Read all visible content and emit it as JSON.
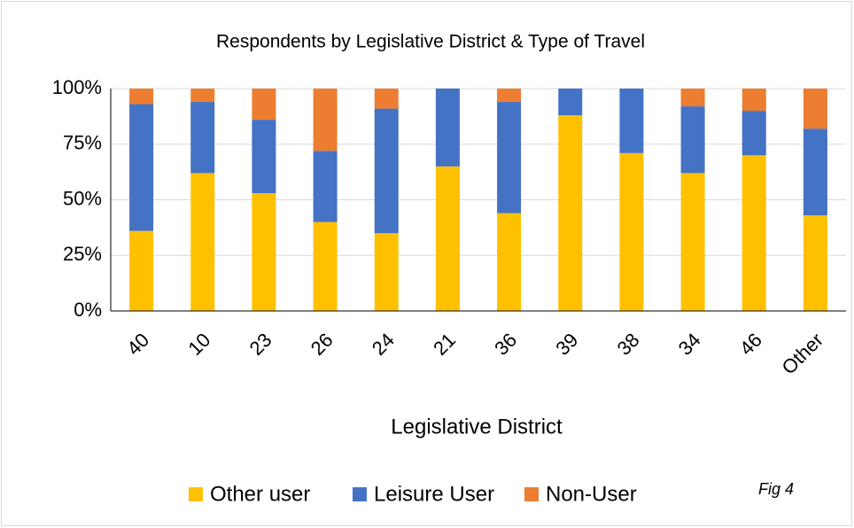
{
  "chart_data": {
    "type": "stacked_bar",
    "title": "Respondents by Legislative District & Type of Travel",
    "x_label": "Legislative District",
    "annotation": "Fig 4",
    "categories": [
      "40",
      "10",
      "23",
      "26",
      "24",
      "21",
      "36",
      "39",
      "38",
      "34",
      "46",
      "Other"
    ],
    "series": [
      {
        "name": "Other user",
        "color": "#FFC000",
        "values": [
          36,
          62,
          53,
          40,
          35,
          65,
          44,
          88,
          71,
          62,
          70,
          43
        ]
      },
      {
        "name": "Leisure User",
        "color": "#4472C4",
        "values": [
          57,
          32,
          33,
          32,
          56,
          35,
          50,
          12,
          29,
          30,
          20,
          39
        ]
      },
      {
        "name": "Non-User",
        "color": "#ED7D31",
        "values": [
          7,
          6,
          14,
          28,
          9,
          0,
          6,
          0,
          0,
          8,
          10,
          18
        ]
      }
    ],
    "ylim": [
      0,
      100
    ],
    "yticks": [
      {
        "value": 0,
        "label": "0%"
      },
      {
        "value": 25,
        "label": "25%"
      },
      {
        "value": 50,
        "label": "50%"
      },
      {
        "value": 75,
        "label": "75%"
      },
      {
        "value": 100,
        "label": "100%"
      }
    ],
    "grid": true,
    "legend": "bottom"
  }
}
